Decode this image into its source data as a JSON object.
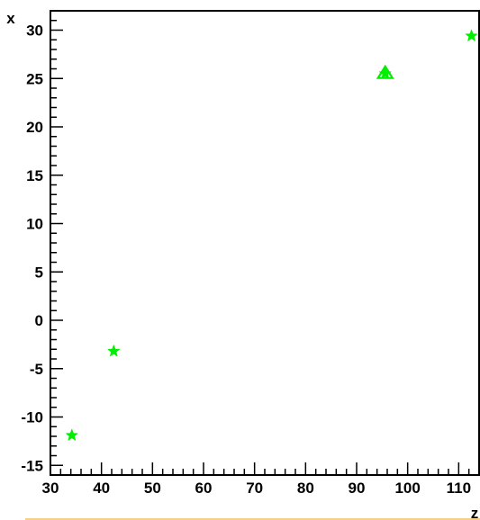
{
  "chart_data": {
    "type": "scatter",
    "title": "",
    "xlabel": "z",
    "ylabel": "x",
    "xlim": [
      30,
      114
    ],
    "ylim": [
      -16,
      32
    ],
    "x_ticks": [
      30,
      40,
      50,
      60,
      70,
      80,
      90,
      100,
      110
    ],
    "y_ticks": [
      -15,
      -10,
      -5,
      0,
      5,
      10,
      15,
      20,
      25,
      30
    ],
    "x_tick_labels": [
      "30",
      "40",
      "50",
      "60",
      "70",
      "80",
      "90",
      "100",
      "110"
    ],
    "y_tick_labels": [
      "-15",
      "-10",
      "-5",
      "0",
      "5",
      "10",
      "15",
      "20",
      "25",
      "30"
    ],
    "grid": false,
    "legend": "none",
    "series": [
      {
        "marker": "star",
        "color": "#00ee00",
        "x": [
          34.2,
          42.4,
          95.6,
          112.5
        ],
        "y": [
          -11.9,
          -3.2,
          25.5,
          29.4
        ]
      },
      {
        "marker": "triangle-open",
        "color": "#00ee00",
        "x": [
          95.6
        ],
        "y": [
          25.5
        ]
      }
    ],
    "footer_line_color": "#f0c060"
  }
}
